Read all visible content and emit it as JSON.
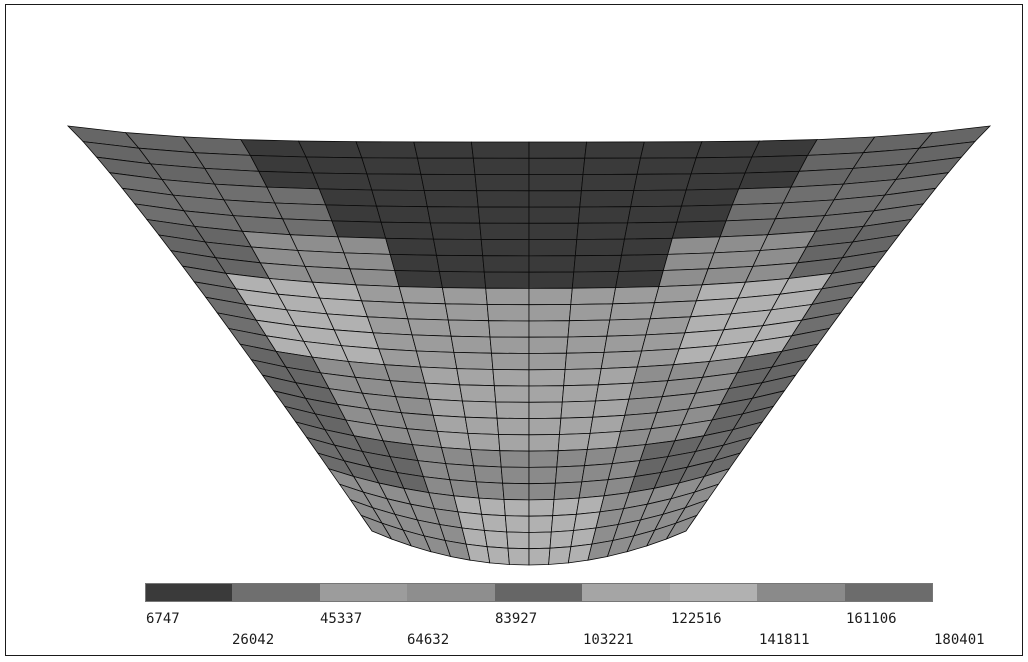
{
  "colors": {
    "mesh_line": "#0a0a0a",
    "background": "#ffffff",
    "bands": [
      "#3a3a3a",
      "#6f6f6f",
      "#9c9c9c",
      "#8e8e8e",
      "#666666",
      "#a5a5a5",
      "#b1b1b1",
      "#8a8a8a",
      "#6c6c6c"
    ]
  },
  "legend": {
    "labels": [
      "6747",
      "26042",
      "45337",
      "64632",
      "83927",
      "103221",
      "122516",
      "141811",
      "161106",
      "180401"
    ]
  }
}
